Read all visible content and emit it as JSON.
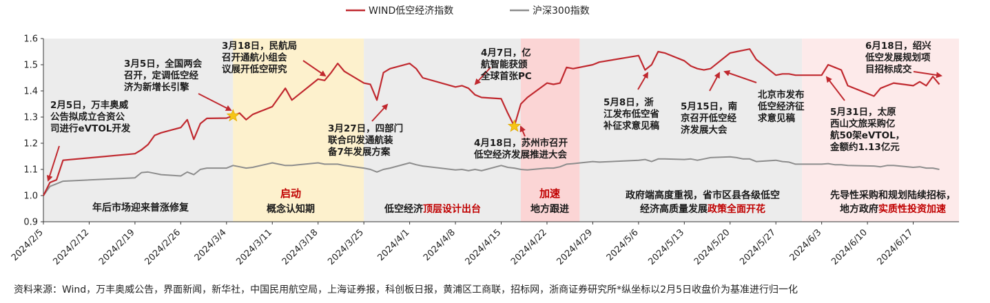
{
  "legend": [
    {
      "name": "WIND低空经济指数",
      "color": "#c0282e"
    },
    {
      "name": "沪深300指数",
      "color": "#8c8c8c"
    }
  ],
  "chart_data": {
    "type": "line",
    "ylim": [
      0.9,
      1.6
    ],
    "yticks": [
      "0.9",
      "1.0",
      "1.1",
      "1.2",
      "1.3",
      "1.4",
      "1.5",
      "1.6"
    ],
    "xlim": [
      "2024-02-05",
      "2024-06-24"
    ],
    "xticks": [
      "2024/2/5",
      "2024/2/12",
      "2024/2/19",
      "2024/2/26",
      "2024/3/4",
      "2024/3/11",
      "2024/3/18",
      "2024/3/25",
      "2024/4/1",
      "2024/4/8",
      "2024/4/15",
      "2024/4/22",
      "2024/4/29",
      "2024/5/6",
      "2024/5/13",
      "2024/5/20",
      "2024/5/27",
      "2024/6/3",
      "2024/6/10",
      "2024/6/17"
    ],
    "series": [
      {
        "name": "WIND低空经济指数",
        "color": "#c0282e",
        "x": [
          "2024-02-05",
          "2024-02-06",
          "2024-02-07",
          "2024-02-08",
          "2024-02-19",
          "2024-02-20",
          "2024-02-21",
          "2024-02-22",
          "2024-02-23",
          "2024-02-26",
          "2024-02-27",
          "2024-02-28",
          "2024-02-29",
          "2024-03-01",
          "2024-03-04",
          "2024-03-05",
          "2024-03-06",
          "2024-03-07",
          "2024-03-08",
          "2024-03-11",
          "2024-03-12",
          "2024-03-13",
          "2024-03-14",
          "2024-03-15",
          "2024-03-18",
          "2024-03-19",
          "2024-03-20",
          "2024-03-21",
          "2024-03-22",
          "2024-03-25",
          "2024-03-26",
          "2024-03-27",
          "2024-03-28",
          "2024-03-29",
          "2024-04-01",
          "2024-04-02",
          "2024-04-03",
          "2024-04-08",
          "2024-04-09",
          "2024-04-10",
          "2024-04-11",
          "2024-04-12",
          "2024-04-15",
          "2024-04-16",
          "2024-04-17",
          "2024-04-18",
          "2024-04-19",
          "2024-04-22",
          "2024-04-23",
          "2024-04-24",
          "2024-04-25",
          "2024-04-26",
          "2024-04-29",
          "2024-04-30",
          "2024-05-06",
          "2024-05-07",
          "2024-05-08",
          "2024-05-09",
          "2024-05-10",
          "2024-05-13",
          "2024-05-14",
          "2024-05-15",
          "2024-05-16",
          "2024-05-17",
          "2024-05-20",
          "2024-05-21",
          "2024-05-22",
          "2024-05-23",
          "2024-05-24",
          "2024-05-27",
          "2024-05-28",
          "2024-05-29",
          "2024-05-30",
          "2024-05-31",
          "2024-06-03",
          "2024-06-04",
          "2024-06-05",
          "2024-06-06",
          "2024-06-07",
          "2024-06-11",
          "2024-06-12",
          "2024-06-13",
          "2024-06-14",
          "2024-06-17",
          "2024-06-18",
          "2024-06-19",
          "2024-06-20",
          "2024-06-21"
        ],
        "values": [
          1.0,
          1.05,
          1.06,
          1.135,
          1.16,
          1.175,
          1.195,
          1.23,
          1.24,
          1.26,
          1.29,
          1.215,
          1.275,
          1.295,
          1.296,
          1.305,
          1.315,
          1.29,
          1.31,
          1.34,
          1.375,
          1.41,
          1.365,
          1.385,
          1.445,
          1.44,
          1.47,
          1.505,
          1.475,
          1.43,
          1.425,
          1.365,
          1.47,
          1.485,
          1.505,
          1.485,
          1.45,
          1.415,
          1.42,
          1.41,
          1.385,
          1.375,
          1.37,
          1.315,
          1.265,
          1.35,
          1.375,
          1.43,
          1.425,
          1.43,
          1.49,
          1.485,
          1.5,
          1.51,
          1.535,
          1.48,
          1.5,
          1.55,
          1.545,
          1.515,
          1.495,
          1.485,
          1.48,
          1.485,
          1.545,
          1.55,
          1.555,
          1.56,
          1.52,
          1.46,
          1.465,
          1.465,
          1.46,
          1.46,
          1.46,
          1.5,
          1.49,
          1.48,
          1.42,
          1.38,
          1.41,
          1.42,
          1.43,
          1.42,
          1.435,
          1.42,
          1.455,
          1.425
        ]
      },
      {
        "name": "沪深300指数",
        "color": "#8c8c8c",
        "x": [
          "2024-02-05",
          "2024-02-06",
          "2024-02-07",
          "2024-02-08",
          "2024-02-19",
          "2024-02-20",
          "2024-02-21",
          "2024-02-22",
          "2024-02-23",
          "2024-02-26",
          "2024-02-27",
          "2024-02-28",
          "2024-02-29",
          "2024-03-01",
          "2024-03-04",
          "2024-03-05",
          "2024-03-06",
          "2024-03-07",
          "2024-03-08",
          "2024-03-11",
          "2024-03-12",
          "2024-03-13",
          "2024-03-14",
          "2024-03-15",
          "2024-03-18",
          "2024-03-19",
          "2024-03-20",
          "2024-03-21",
          "2024-03-22",
          "2024-03-25",
          "2024-03-26",
          "2024-03-27",
          "2024-03-28",
          "2024-03-29",
          "2024-04-01",
          "2024-04-02",
          "2024-04-03",
          "2024-04-08",
          "2024-04-09",
          "2024-04-10",
          "2024-04-11",
          "2024-04-12",
          "2024-04-15",
          "2024-04-16",
          "2024-04-17",
          "2024-04-18",
          "2024-04-19",
          "2024-04-22",
          "2024-04-23",
          "2024-04-24",
          "2024-04-25",
          "2024-04-26",
          "2024-04-29",
          "2024-04-30",
          "2024-05-06",
          "2024-05-07",
          "2024-05-08",
          "2024-05-09",
          "2024-05-10",
          "2024-05-13",
          "2024-05-14",
          "2024-05-15",
          "2024-05-16",
          "2024-05-17",
          "2024-05-20",
          "2024-05-21",
          "2024-05-22",
          "2024-05-23",
          "2024-05-24",
          "2024-05-27",
          "2024-05-28",
          "2024-05-29",
          "2024-05-30",
          "2024-05-31",
          "2024-06-03",
          "2024-06-04",
          "2024-06-05",
          "2024-06-06",
          "2024-06-07",
          "2024-06-11",
          "2024-06-12",
          "2024-06-13",
          "2024-06-14",
          "2024-06-17",
          "2024-06-18",
          "2024-06-19",
          "2024-06-20",
          "2024-06-21"
        ],
        "values": [
          1.0,
          1.035,
          1.045,
          1.055,
          1.068,
          1.088,
          1.09,
          1.085,
          1.08,
          1.075,
          1.09,
          1.08,
          1.1,
          1.105,
          1.105,
          1.115,
          1.11,
          1.105,
          1.108,
          1.125,
          1.12,
          1.115,
          1.115,
          1.118,
          1.125,
          1.12,
          1.12,
          1.12,
          1.115,
          1.105,
          1.1,
          1.09,
          1.1,
          1.105,
          1.125,
          1.118,
          1.113,
          1.098,
          1.1,
          1.095,
          1.1,
          1.095,
          1.115,
          1.108,
          1.105,
          1.1,
          1.098,
          1.105,
          1.105,
          1.11,
          1.12,
          1.122,
          1.13,
          1.128,
          1.135,
          1.138,
          1.13,
          1.14,
          1.14,
          1.138,
          1.14,
          1.135,
          1.14,
          1.145,
          1.148,
          1.145,
          1.14,
          1.14,
          1.13,
          1.135,
          1.13,
          1.128,
          1.12,
          1.12,
          1.12,
          1.122,
          1.118,
          1.118,
          1.115,
          1.113,
          1.11,
          1.115,
          1.115,
          1.108,
          1.11,
          1.105,
          1.105,
          1.1
        ]
      }
    ],
    "phases": [
      {
        "id": "p1",
        "from": "2024-02-05",
        "to": "2024-03-04",
        "color": "#ececec",
        "label_lines": [
          "年后市场迎来普涨修复"
        ]
      },
      {
        "id": "p2",
        "from": "2024-03-05",
        "to": "2024-03-24",
        "color": "#fdf1cd",
        "label_lines": [
          "启动",
          "概念认知期"
        ]
      },
      {
        "id": "p3",
        "from": "2024-03-25",
        "to": "2024-04-17",
        "color": "#ececec",
        "label_lines": [
          "低空经济顶层设计出台"
        ]
      },
      {
        "id": "p4",
        "from": "2024-04-18",
        "to": "2024-04-26",
        "color": "#fbd5d5",
        "label_lines": [
          "加速",
          "地方跟进"
        ]
      },
      {
        "id": "p5",
        "from": "2024-04-27",
        "to": "2024-05-30",
        "color": "#ececec",
        "label_lines": [
          "政府端高度重视，省市区县各级低空",
          "经济高质量发展政策全面开花"
        ]
      },
      {
        "id": "p6",
        "from": "2024-05-31",
        "to": "2024-06-24",
        "color": "#fdeaea",
        "label_lines": [
          "先导性采购和规划陆续招标，",
          "地方政府实质性投资加速"
        ]
      }
    ],
    "markers": [
      {
        "x": "2024-03-05",
        "y": 1.305,
        "color": "#f5c518"
      },
      {
        "x": "2024-04-17",
        "y": 1.265,
        "color": "#f5c518"
      }
    ]
  },
  "phase_labels": {
    "p1": "年后市场迎来普涨修复",
    "p2_title": "启动",
    "p2": "概念认知期",
    "p3_prefix": "低空经济",
    "p3_red": "顶层设计出台",
    "p4_title": "加速",
    "p4": "地方跟进",
    "p5_line1": "政府端高度重视，省市区县各级低空",
    "p5_prefix": "经济高质量发展",
    "p5_red": "政策全面开花",
    "p6_line1": "先导性采购和规划陆续招标，",
    "p6_prefix": "地方政府",
    "p6_red": "实质性投资加速"
  },
  "annotations": [
    {
      "lines": [
        "2月5日，万丰奥威",
        "公告拟成立合资公",
        "司进行eVTOL开发"
      ]
    },
    {
      "lines": [
        "3月5日，全国两会",
        "召开，定调低空经",
        "济为新增长引擎"
      ]
    },
    {
      "lines": [
        "3月18日，民航局",
        "召开通航小组会",
        "议展开低空研究"
      ]
    },
    {
      "lines": [
        "3月27日，四部门",
        "联合印发通航装",
        "备7年发展方案"
      ]
    },
    {
      "lines": [
        "4月7日，亿",
        "航智能获颁",
        "全球首张PC"
      ]
    },
    {
      "lines": [
        "4月18日，苏州市召开",
        "低空经济发展推进大会"
      ]
    },
    {
      "lines": [
        "5月8日，浙",
        "江发布低空省",
        "补征求意见稿"
      ]
    },
    {
      "lines": [
        "5月15日，南",
        "京召开低空经",
        "济发展大会"
      ]
    },
    {
      "lines": [
        "北京市发布",
        "低空经济征",
        "求意见稿"
      ]
    },
    {
      "lines": [
        "5月31日，太原",
        "西山文旅采购亿",
        "航50架eVTOL，",
        "金额约1.13亿元"
      ]
    },
    {
      "lines": [
        "6月18日，绍兴",
        "低空发展规划项",
        "目招标成交"
      ]
    }
  ],
  "source": "资料来源：Wind，万丰奥威公告，界面新闻，新华社，中国民用航空局，上海证券报，科创板日报，黄浦区工商联，招标网，浙商证券研究所*纵坐标以2月5日收盘价为基准进行归一化"
}
